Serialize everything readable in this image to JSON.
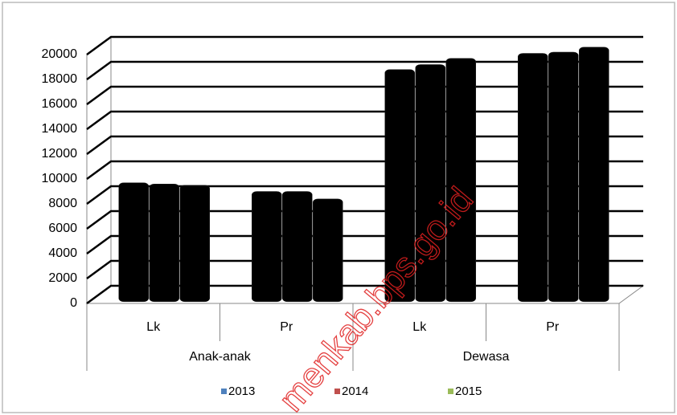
{
  "chart_data": {
    "type": "bar3d",
    "categories": [
      "Lk",
      "Pr",
      "Lk",
      "Pr"
    ],
    "groups": [
      "Anak-anak",
      "Dewasa"
    ],
    "series": [
      {
        "name": "2013",
        "color": "#4f81bd",
        "values": [
          9200,
          8500,
          18300,
          19600
        ]
      },
      {
        "name": "2014",
        "color": "#c0504d",
        "values": [
          9100,
          8500,
          18700,
          19700
        ]
      },
      {
        "name": "2015",
        "color": "#9bbb59",
        "values": [
          9000,
          7900,
          19200,
          20100
        ]
      }
    ],
    "bar_color": "#000000",
    "ylim": [
      0,
      20000
    ],
    "yticks": [
      0,
      2000,
      4000,
      6000,
      8000,
      10000,
      12000,
      14000,
      16000,
      18000,
      20000
    ],
    "grid": true,
    "legend": "bottom",
    "watermark": "menkab.bps.go.id"
  }
}
